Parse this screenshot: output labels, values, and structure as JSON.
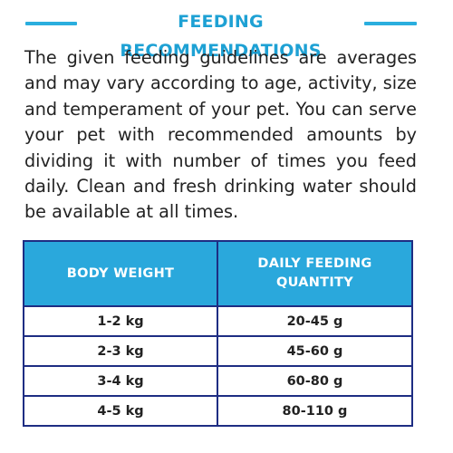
{
  "section": {
    "title": "FEEDING RECOMMENDATIONS",
    "intro": "The given feeding guidelines are averages and may vary according to age, activity, size and temperament of your pet. You can serve your pet with recommended amounts by dividing it with number of times you feed daily. Clean and fresh drinking water should be available at all times."
  },
  "colors": {
    "accent": "#2aaede",
    "header_bg": "#2aa8dc",
    "border": "#1e2d83"
  },
  "table": {
    "headers": {
      "weight": "BODY WEIGHT",
      "quantity": "DAILY FEEDING QUANTITY"
    },
    "rows": [
      {
        "weight": "1-2 kg",
        "quantity": "20-45 g"
      },
      {
        "weight": "2-3 kg",
        "quantity": "45-60 g"
      },
      {
        "weight": "3-4 kg",
        "quantity": "60-80 g"
      },
      {
        "weight": "4-5 kg",
        "quantity": "80-110 g"
      }
    ]
  }
}
